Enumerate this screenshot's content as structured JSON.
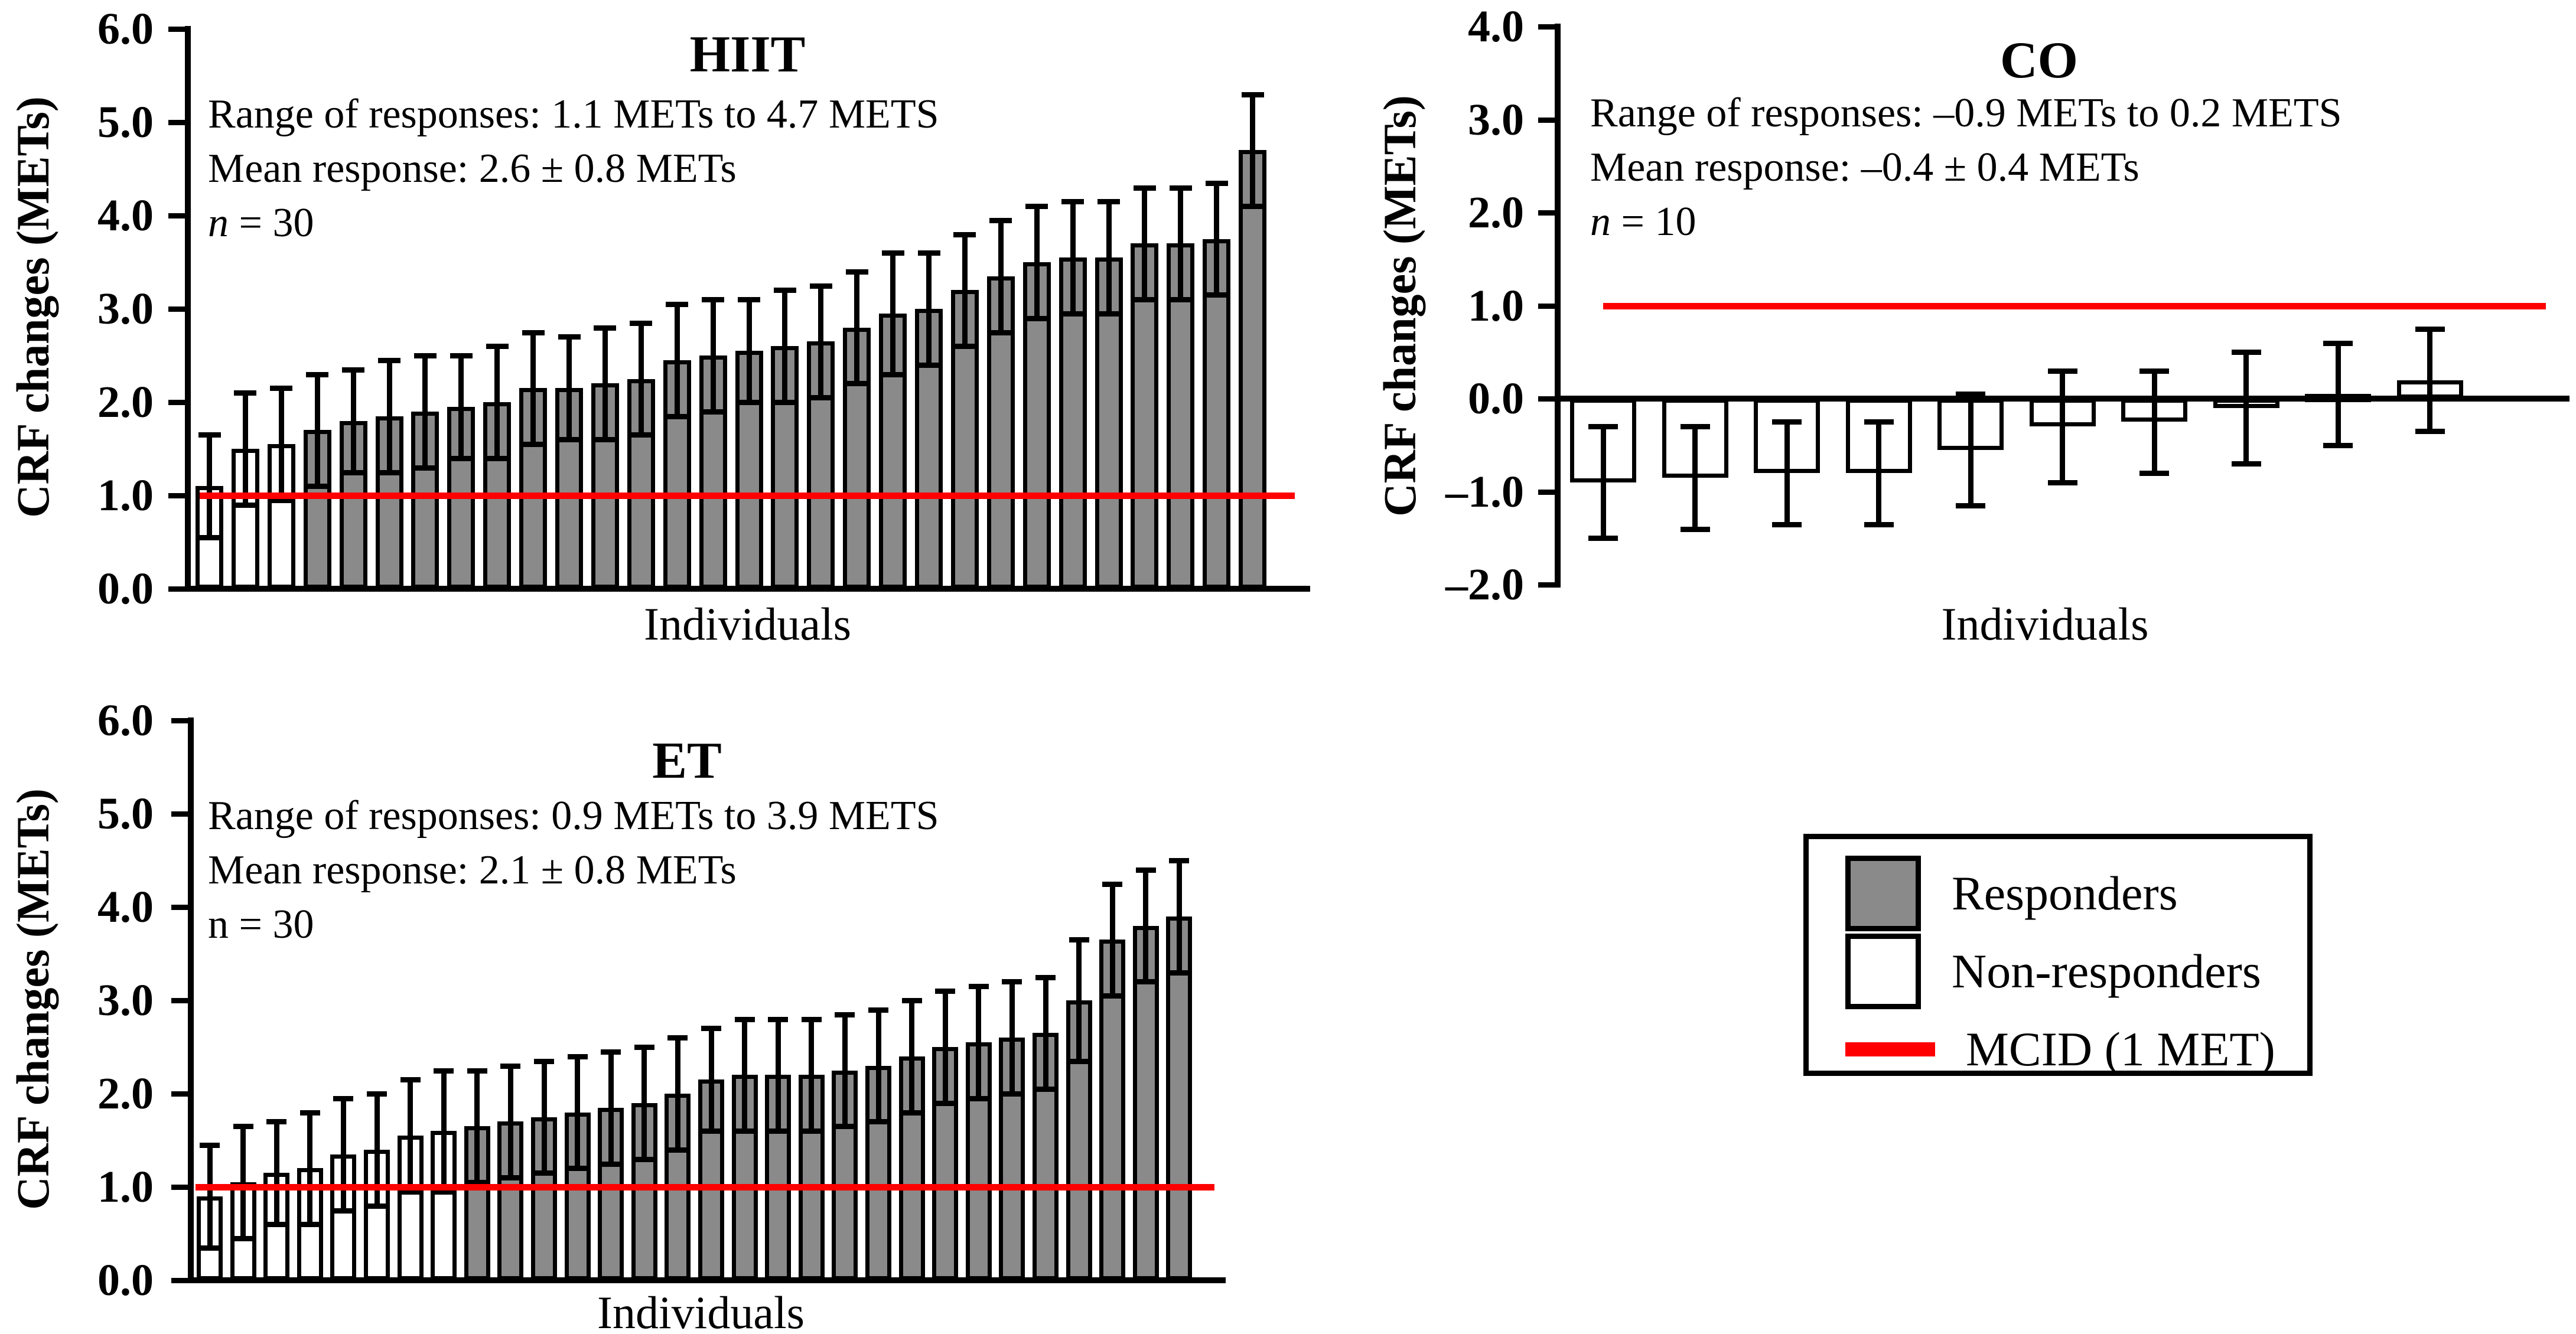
{
  "colors": {
    "responder_fill": "#8a8a8a",
    "non_responder_fill": "#ffffff",
    "mcid_red": "#ff0000",
    "axis_black": "#000000"
  },
  "legend": {
    "items": [
      {
        "label": "Responders",
        "swatch": "responder-gray-square"
      },
      {
        "label": "Non-responders",
        "swatch": "non-responder-white-square"
      },
      {
        "label": "MCID (1 MET)",
        "swatch": "red-line"
      }
    ]
  },
  "chart_data": [
    {
      "type": "bar",
      "id": "hiit",
      "title": "HIIT",
      "xlabel": "Individuals",
      "ylabel": "CRF changes (METs)",
      "ylim": [
        0.0,
        6.0
      ],
      "ytick_labels": [
        "6.0",
        "5.0",
        "4.0",
        "3.0",
        "2.0",
        "1.0",
        "0.0"
      ],
      "grid": "off",
      "mcid_value": 1.0,
      "annotations": {
        "range_text": "Range of responses: 1.1 METs to 4.7 METS",
        "mean_text": "Mean response: 2.6 ± 0.8 METs",
        "n_symbol": "n",
        "n_rest": " = 30",
        "n_italic": true
      },
      "n": 30,
      "non_responder_count": 3,
      "values": [
        1.1,
        1.5,
        1.55,
        1.7,
        1.8,
        1.85,
        1.9,
        1.95,
        2.0,
        2.15,
        2.15,
        2.2,
        2.25,
        2.45,
        2.5,
        2.55,
        2.6,
        2.65,
        2.8,
        2.95,
        3.0,
        3.2,
        3.35,
        3.5,
        3.55,
        3.55,
        3.7,
        3.7,
        3.75,
        4.7
      ],
      "errors": [
        0.55,
        0.6,
        0.6,
        0.6,
        0.55,
        0.6,
        0.6,
        0.55,
        0.6,
        0.6,
        0.55,
        0.6,
        0.6,
        0.6,
        0.6,
        0.55,
        0.6,
        0.6,
        0.6,
        0.65,
        0.6,
        0.6,
        0.6,
        0.6,
        0.6,
        0.6,
        0.6,
        0.6,
        0.6,
        0.6
      ]
    },
    {
      "type": "bar",
      "id": "co",
      "title": "CO",
      "xlabel": "Individuals",
      "ylabel": "CRF changes (METs)",
      "ylim": [
        -2.0,
        4.0
      ],
      "ytick_labels": [
        "4.0",
        "3.0",
        "2.0",
        "1.0",
        "0.0",
        "–1.0",
        "–2.0"
      ],
      "grid": "off",
      "mcid_value": 1.0,
      "annotations": {
        "range_text": "Range of responses: –0.9 METs to 0.2 METS",
        "mean_text": "Mean response: –0.4 ± 0.4 METs",
        "n_symbol": "n",
        "n_rest": " = 10",
        "n_italic": true
      },
      "n": 10,
      "non_responder_count": 10,
      "values": [
        -0.9,
        -0.85,
        -0.8,
        -0.8,
        -0.55,
        -0.3,
        -0.25,
        -0.1,
        0.05,
        0.2
      ],
      "errors": [
        0.6,
        0.55,
        0.55,
        0.55,
        0.6,
        0.6,
        0.55,
        0.6,
        0.55,
        0.55
      ]
    },
    {
      "type": "bar",
      "id": "et",
      "title": "ET",
      "xlabel": "Individuals",
      "ylabel": "CRF changes (METs)",
      "ylim": [
        0.0,
        6.0
      ],
      "ytick_labels": [
        "6.0",
        "5.0",
        "4.0",
        "3.0",
        "2.0",
        "1.0",
        "0.0"
      ],
      "grid": "off",
      "mcid_value": 1.0,
      "annotations": {
        "range_text": "Range of responses: 0.9 METs to 3.9 METS",
        "mean_text": "Mean response: 2.1 ± 0.8 METs",
        "n_symbol": "n",
        "n_rest": " = 30",
        "n_italic": false
      },
      "n": 30,
      "non_responder_count": 8,
      "values": [
        0.9,
        1.05,
        1.15,
        1.2,
        1.35,
        1.4,
        1.55,
        1.6,
        1.65,
        1.7,
        1.75,
        1.8,
        1.85,
        1.9,
        2.0,
        2.15,
        2.2,
        2.2,
        2.2,
        2.25,
        2.3,
        2.4,
        2.5,
        2.55,
        2.6,
        2.65,
        3.0,
        3.65,
        3.8,
        3.9
      ],
      "errors": [
        0.55,
        0.6,
        0.55,
        0.6,
        0.6,
        0.6,
        0.6,
        0.65,
        0.6,
        0.6,
        0.6,
        0.6,
        0.6,
        0.6,
        0.6,
        0.55,
        0.6,
        0.6,
        0.6,
        0.6,
        0.6,
        0.6,
        0.6,
        0.6,
        0.6,
        0.6,
        0.65,
        0.6,
        0.6,
        0.6
      ]
    }
  ]
}
